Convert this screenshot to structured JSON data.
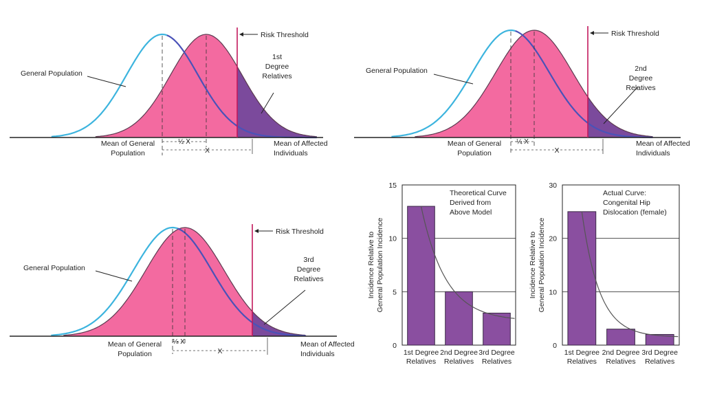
{
  "colors": {
    "general_curve": "#3cb4de",
    "relatives_fill": "#f36aa0",
    "relatives_outline": "#5b3a50",
    "affected_tail": "#7b4a9c",
    "overlap_line": "#4a52b8",
    "threshold": "#c2185b",
    "bar_fill": "#8a4fa0",
    "bar_stroke": "#3a2a45",
    "fit_curve": "#555555"
  },
  "panels": [
    {
      "threshold_label": "Risk Threshold",
      "general_label": "General Population",
      "relatives_label": [
        "1st",
        "Degree",
        "Relatives"
      ],
      "mean_general_label": [
        "Mean of General",
        "Population"
      ],
      "mean_affected_label": [
        "Mean of Affected",
        "Individuals"
      ],
      "shift_label": "½ X",
      "x_label": "X"
    },
    {
      "threshold_label": "Risk Threshold",
      "general_label": "General Population",
      "relatives_label": [
        "2nd",
        "Degree",
        "Relatives"
      ],
      "mean_general_label": [
        "Mean of General",
        "Population"
      ],
      "mean_affected_label": [
        "Mean of Affected",
        "Individuals"
      ],
      "shift_label": "¼ X",
      "x_label": "X"
    },
    {
      "threshold_label": "Risk Threshold",
      "general_label": "General Population",
      "relatives_label": [
        "3rd",
        "Degree",
        "Relatives"
      ],
      "mean_general_label": [
        "Mean of General",
        "Population"
      ],
      "mean_affected_label": [
        "Mean of Affected",
        "Individuals"
      ],
      "shift_label": "⅛ X",
      "x_label": "X"
    }
  ],
  "chart_data": [
    {
      "type": "bar",
      "annotation": [
        "Theoretical Curve",
        "Derived from",
        "Above Model"
      ],
      "ylabel": [
        "Incidence Relative to",
        "General Population Incidence"
      ],
      "categories": [
        [
          "1st Degree",
          "Relatives"
        ],
        [
          "2nd Degree",
          "Relatives"
        ],
        [
          "3rd Degree",
          "Relatives"
        ]
      ],
      "values": [
        13,
        5,
        3
      ],
      "ylim": [
        0,
        15
      ],
      "yticks": [
        0,
        5,
        10,
        15
      ],
      "grid": true
    },
    {
      "type": "bar",
      "annotation": [
        "Actual Curve:",
        "Congenital Hip",
        "Dislocation (female)"
      ],
      "ylabel": [
        "Incidence Relative to",
        "General Population Incidence"
      ],
      "categories": [
        [
          "1st Degree",
          "Relatives"
        ],
        [
          "2nd Degree",
          "Relatives"
        ],
        [
          "3rd Degree",
          "Relatives"
        ]
      ],
      "values": [
        25,
        3,
        2
      ],
      "ylim": [
        0,
        30
      ],
      "yticks": [
        0,
        10,
        20,
        30
      ],
      "grid": true
    }
  ]
}
